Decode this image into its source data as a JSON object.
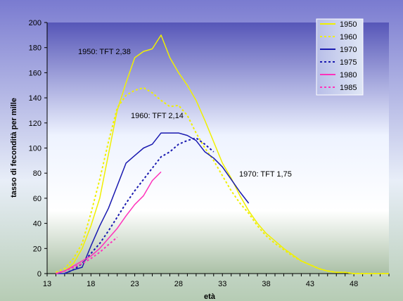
{
  "chart_data": {
    "type": "line",
    "title": "",
    "xlabel": "età",
    "ylabel": "tasso di fecondità per mille",
    "xlim": [
      13,
      52
    ],
    "ylim": [
      0,
      200
    ],
    "x_ticks": [
      "13",
      "18",
      "23",
      "28",
      "33",
      "38",
      "43",
      "48"
    ],
    "y_ticks": [
      "0",
      "20",
      "40",
      "60",
      "80",
      "100",
      "120",
      "140",
      "160",
      "180",
      "200"
    ],
    "grid": false,
    "legend_position": "top-right",
    "series": [
      {
        "name": "1950",
        "color": "#f0f000",
        "dash": "solid",
        "x": [
          14,
          15,
          16,
          17,
          18,
          19,
          20,
          21,
          22,
          23,
          24,
          25,
          26,
          27,
          28,
          29,
          30,
          31,
          32,
          33,
          34,
          35,
          36,
          37,
          38,
          39,
          40,
          41,
          42,
          43,
          44,
          45,
          46,
          47,
          48,
          49,
          50,
          51,
          52
        ],
        "y": [
          0,
          2,
          8,
          20,
          38,
          60,
          95,
          130,
          152,
          172,
          177,
          179,
          190,
          172,
          160,
          150,
          138,
          122,
          105,
          88,
          76,
          62,
          50,
          40,
          32,
          26,
          20,
          15,
          10,
          7,
          4,
          2,
          1,
          1,
          0,
          0,
          0,
          0,
          0
        ]
      },
      {
        "name": "1960",
        "color": "#f0f000",
        "dash": "dot",
        "x": [
          14,
          15,
          16,
          17,
          18,
          19,
          20,
          21,
          22,
          23,
          24,
          25,
          26,
          27,
          28,
          29,
          30,
          31,
          32,
          33,
          34,
          35,
          36,
          37,
          38,
          39,
          40,
          41,
          42,
          43,
          44,
          45,
          46,
          47,
          48,
          49,
          50,
          51,
          52
        ],
        "y": [
          1,
          4,
          12,
          24,
          48,
          75,
          105,
          132,
          142,
          146,
          148,
          144,
          138,
          133,
          134,
          126,
          112,
          100,
          90,
          78,
          66,
          56,
          48,
          38,
          30,
          24,
          19,
          14,
          10,
          7,
          4,
          2,
          1,
          1,
          0,
          0,
          0,
          0,
          0
        ]
      },
      {
        "name": "1970",
        "color": "#1a1ab0",
        "dash": "solid",
        "x": [
          14,
          15,
          16,
          17,
          18,
          19,
          20,
          21,
          22,
          23,
          24,
          25,
          26,
          27,
          28,
          29,
          30,
          31,
          32,
          33,
          34,
          35,
          36
        ],
        "y": [
          0,
          0,
          3,
          5,
          22,
          38,
          52,
          70,
          88,
          94,
          100,
          103,
          112,
          112,
          112,
          110,
          106,
          97,
          92,
          85,
          75,
          65,
          56
        ]
      },
      {
        "name": "1975",
        "color": "#1a1ab0",
        "dash": "dot",
        "x": [
          15,
          16,
          17,
          18,
          19,
          20,
          21,
          22,
          23,
          24,
          25,
          26,
          27,
          28,
          29,
          30,
          31,
          32
        ],
        "y": [
          0,
          3,
          8,
          16,
          24,
          34,
          45,
          56,
          66,
          75,
          84,
          93,
          97,
          103,
          106,
          108,
          103,
          97
        ]
      },
      {
        "name": "1980",
        "color": "#ff33bb",
        "dash": "solid",
        "x": [
          14,
          15,
          16,
          17,
          18,
          19,
          20,
          21,
          22,
          23,
          24,
          25,
          26
        ],
        "y": [
          0,
          2,
          6,
          10,
          14,
          20,
          28,
          36,
          46,
          55,
          62,
          74,
          81
        ]
      },
      {
        "name": "1985",
        "color": "#ff33bb",
        "dash": "dot",
        "x": [
          14,
          15,
          16,
          17,
          18,
          19,
          20,
          21
        ],
        "y": [
          0,
          2,
          5,
          8,
          12,
          17,
          23,
          29
        ]
      }
    ],
    "annotations": [
      "1950: TFT 2,38",
      "1960: TFT 2,14",
      "1970: TFT 1,75"
    ]
  }
}
